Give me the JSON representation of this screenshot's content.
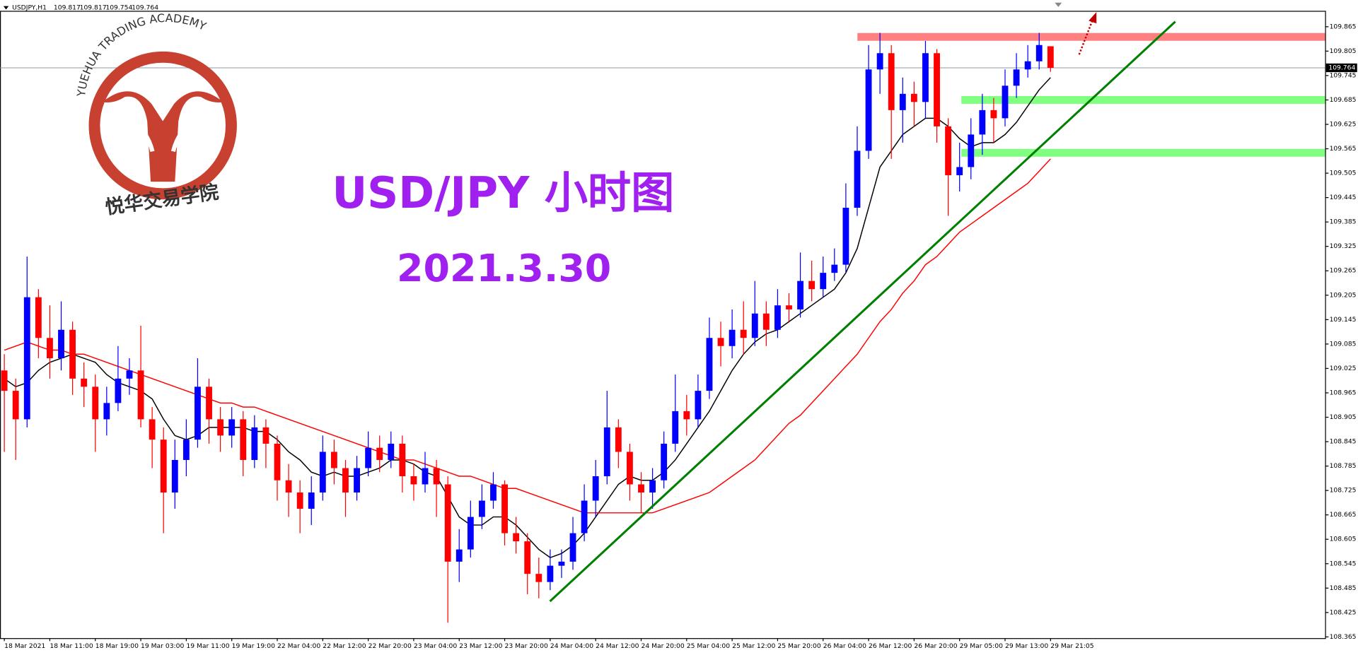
{
  "chart_data": {
    "type": "candlestick",
    "symbol": "USDJPY,H1",
    "title": "USD/JPY 小时图",
    "subtitle": "2021.3.30",
    "logo_text": "YUEHUA TRADING ACADEMY",
    "logo_text_cn": "悦华交易学院",
    "up_color": "#0000ff",
    "down_color": "#ff0000",
    "categories": [
      "18 Mar 2021",
      null,
      null,
      null,
      "18 Mar 11:00",
      null,
      null,
      null,
      "18 Mar 19:00",
      null,
      null,
      null,
      "19 Mar 03:00",
      null,
      null,
      null,
      "19 Mar 11:00",
      null,
      null,
      null,
      "19 Mar 19:00",
      null,
      null,
      null,
      "22 Mar 04:00",
      null,
      null,
      null,
      "22 Mar 12:00",
      null,
      null,
      null,
      "22 Mar 20:00",
      null,
      null,
      null,
      "23 Mar 04:00",
      null,
      null,
      null,
      "23 Mar 12:00",
      null,
      null,
      null,
      "23 Mar 20:00",
      null,
      null,
      null,
      "24 Mar 04:00",
      null,
      null,
      null,
      "24 Mar 12:00",
      null,
      null,
      null,
      "24 Mar 20:00",
      null,
      null,
      null,
      "25 Mar 04:00",
      null,
      null,
      null,
      "25 Mar 12:00",
      null,
      null,
      null,
      "25 Mar 20:00",
      null,
      null,
      null,
      "26 Mar 04:00",
      null,
      null,
      null,
      "26 Mar 12:00",
      null,
      null,
      null,
      "26 Mar 20:00",
      null,
      null,
      null,
      "29 Mar 05:00",
      null,
      null,
      null,
      "29 Mar 13:00",
      null,
      null,
      null,
      "29 Mar 21:05"
    ],
    "open": [
      109.02,
      108.97,
      108.9,
      109.2,
      109.1,
      109.05,
      109.12,
      109.0,
      108.98,
      108.9,
      108.94,
      109.0,
      109.02,
      108.9,
      108.85,
      108.72,
      108.8,
      108.85,
      108.98,
      108.9,
      108.86,
      108.9,
      108.8,
      108.88,
      108.84,
      108.75,
      108.72,
      108.68,
      108.72,
      108.82,
      108.78,
      108.72,
      108.78,
      108.83,
      108.8,
      108.84,
      108.76,
      108.74,
      108.78,
      108.74,
      108.55,
      108.58,
      108.66,
      108.7,
      108.74,
      108.62,
      108.6,
      108.52,
      108.5,
      108.54,
      108.55,
      108.62,
      108.7,
      108.76,
      108.88,
      108.82,
      108.74,
      108.72,
      108.75,
      108.84,
      108.92,
      108.9,
      108.97,
      109.1,
      109.08,
      109.12,
      109.1,
      109.16,
      109.12,
      109.18,
      109.17,
      109.24,
      109.22,
      109.26,
      109.28,
      109.42,
      109.56,
      109.76,
      109.8,
      109.66,
      109.7,
      109.68,
      109.8,
      109.62,
      109.5,
      109.52,
      109.6,
      109.66,
      109.64,
      109.72,
      109.76,
      109.78,
      109.817
    ],
    "high": [
      109.06,
      109.0,
      109.3,
      109.22,
      109.18,
      109.19,
      109.14,
      109.04,
      109.01,
      108.98,
      109.08,
      109.05,
      109.13,
      108.93,
      108.88,
      108.85,
      108.9,
      109.05,
      109.0,
      108.93,
      108.93,
      108.92,
      108.91,
      108.9,
      108.86,
      108.79,
      108.75,
      108.76,
      108.86,
      108.85,
      108.8,
      108.81,
      108.87,
      108.86,
      108.87,
      108.86,
      108.79,
      108.82,
      108.8,
      108.76,
      108.63,
      108.7,
      108.74,
      108.77,
      108.75,
      108.66,
      108.62,
      108.56,
      108.58,
      108.58,
      108.66,
      108.74,
      108.8,
      108.97,
      108.9,
      108.84,
      108.77,
      108.78,
      108.87,
      109.01,
      108.96,
      109.01,
      109.15,
      109.14,
      109.17,
      109.19,
      109.24,
      109.19,
      109.22,
      109.21,
      109.31,
      109.29,
      109.3,
      109.32,
      109.48,
      109.62,
      109.82,
      109.85,
      109.82,
      109.74,
      109.73,
      109.83,
      109.81,
      109.64,
      109.58,
      109.64,
      109.7,
      109.69,
      109.76,
      109.8,
      109.82,
      109.85,
      109.817
    ],
    "low": [
      108.82,
      108.8,
      108.88,
      109.05,
      109.0,
      109.02,
      108.96,
      108.93,
      108.82,
      108.86,
      108.92,
      108.96,
      108.88,
      108.78,
      108.62,
      108.68,
      108.76,
      108.83,
      108.84,
      108.82,
      108.83,
      108.76,
      108.78,
      108.78,
      108.7,
      108.66,
      108.62,
      108.64,
      108.7,
      108.74,
      108.66,
      108.7,
      108.76,
      108.77,
      108.78,
      108.72,
      108.7,
      108.72,
      108.66,
      108.4,
      108.5,
      108.56,
      108.63,
      108.68,
      108.59,
      108.57,
      108.47,
      108.46,
      108.48,
      108.51,
      108.53,
      108.6,
      108.66,
      108.74,
      108.78,
      108.7,
      108.67,
      108.68,
      108.73,
      108.82,
      108.86,
      108.88,
      108.95,
      109.03,
      109.05,
      109.06,
      109.08,
      109.08,
      109.1,
      109.14,
      109.15,
      109.19,
      109.2,
      109.24,
      109.26,
      109.4,
      109.54,
      109.7,
      109.54,
      109.58,
      109.62,
      109.64,
      109.58,
      109.4,
      109.46,
      109.49,
      109.55,
      109.58,
      109.62,
      109.69,
      109.74,
      109.76,
      109.754
    ],
    "close": [
      108.97,
      108.9,
      109.2,
      109.1,
      109.05,
      109.12,
      109.0,
      108.98,
      108.9,
      108.94,
      109.0,
      109.02,
      108.9,
      108.85,
      108.72,
      108.8,
      108.85,
      108.98,
      108.9,
      108.86,
      108.9,
      108.8,
      108.88,
      108.84,
      108.75,
      108.72,
      108.68,
      108.72,
      108.82,
      108.78,
      108.72,
      108.78,
      108.83,
      108.8,
      108.84,
      108.76,
      108.74,
      108.78,
      108.74,
      108.55,
      108.58,
      108.66,
      108.7,
      108.74,
      108.62,
      108.6,
      108.52,
      108.5,
      108.54,
      108.55,
      108.62,
      108.7,
      108.76,
      108.88,
      108.82,
      108.74,
      108.72,
      108.75,
      108.84,
      108.92,
      108.9,
      108.97,
      109.1,
      109.08,
      109.12,
      109.1,
      109.16,
      109.12,
      109.18,
      109.17,
      109.24,
      109.22,
      109.26,
      109.28,
      109.42,
      109.56,
      109.76,
      109.8,
      109.66,
      109.7,
      109.68,
      109.8,
      109.62,
      109.5,
      109.52,
      109.6,
      109.66,
      109.64,
      109.72,
      109.76,
      109.78,
      109.82,
      109.764
    ],
    "moving_averages": [
      {
        "color": "#000000",
        "values": [
          109.0,
          108.98,
          108.99,
          109.02,
          109.04,
          109.05,
          109.06,
          109.05,
          109.04,
          109.01,
          108.99,
          108.98,
          108.97,
          108.95,
          108.9,
          108.86,
          108.85,
          108.86,
          108.88,
          108.88,
          108.88,
          108.88,
          108.87,
          108.87,
          108.85,
          108.82,
          108.8,
          108.77,
          108.76,
          108.77,
          108.76,
          108.76,
          108.77,
          108.78,
          108.8,
          108.8,
          108.79,
          108.77,
          108.76,
          108.71,
          108.66,
          108.64,
          108.64,
          108.66,
          108.66,
          108.64,
          108.61,
          108.58,
          108.56,
          108.57,
          108.59,
          108.62,
          108.66,
          108.7,
          108.74,
          108.76,
          108.75,
          108.75,
          108.77,
          108.8,
          108.84,
          108.88,
          108.92,
          108.97,
          109.02,
          109.06,
          109.09,
          109.11,
          109.12,
          109.14,
          109.16,
          109.18,
          109.2,
          109.22,
          109.26,
          109.32,
          109.42,
          109.52,
          109.56,
          109.6,
          109.62,
          109.64,
          109.64,
          109.62,
          109.59,
          109.57,
          109.58,
          109.58,
          109.6,
          109.63,
          109.67,
          109.71,
          109.74
        ]
      },
      {
        "color": "#ff0000",
        "values": [
          109.07,
          109.08,
          109.09,
          109.08,
          109.07,
          109.07,
          109.06,
          109.06,
          109.05,
          109.04,
          109.03,
          109.02,
          109.01,
          109.0,
          108.99,
          108.98,
          108.97,
          108.96,
          108.95,
          108.94,
          108.94,
          108.93,
          108.93,
          108.92,
          108.91,
          108.9,
          108.89,
          108.88,
          108.87,
          108.86,
          108.85,
          108.84,
          108.83,
          108.82,
          108.81,
          108.8,
          108.8,
          108.79,
          108.78,
          108.77,
          108.76,
          108.76,
          108.75,
          108.74,
          108.73,
          108.73,
          108.72,
          108.71,
          108.7,
          108.69,
          108.68,
          108.67,
          108.67,
          108.67,
          108.67,
          108.67,
          108.67,
          108.67,
          108.68,
          108.69,
          108.7,
          108.71,
          108.72,
          108.74,
          108.76,
          108.78,
          108.8,
          108.83,
          108.86,
          108.89,
          108.91,
          108.94,
          108.97,
          109.0,
          109.03,
          109.06,
          109.1,
          109.14,
          109.17,
          109.21,
          109.24,
          109.28,
          109.3,
          109.33,
          109.36,
          109.38,
          109.4,
          109.42,
          109.44,
          109.46,
          109.48,
          109.51,
          109.54
        ]
      }
    ],
    "levels": [
      {
        "value": 109.84,
        "color": "#ff8080"
      },
      {
        "value": 109.685,
        "color": "#80ff80"
      },
      {
        "value": 109.555,
        "color": "#80ff80"
      }
    ],
    "ylim": [
      108.361,
      109.903
    ],
    "yticks": [
      109.865,
      109.805,
      109.745,
      109.685,
      109.625,
      109.565,
      109.505,
      109.445,
      109.385,
      109.325,
      109.265,
      109.205,
      109.145,
      109.085,
      109.025,
      108.965,
      108.905,
      108.845,
      108.785,
      108.725,
      108.665,
      108.605,
      108.545,
      108.485,
      108.425,
      108.365
    ]
  }
}
